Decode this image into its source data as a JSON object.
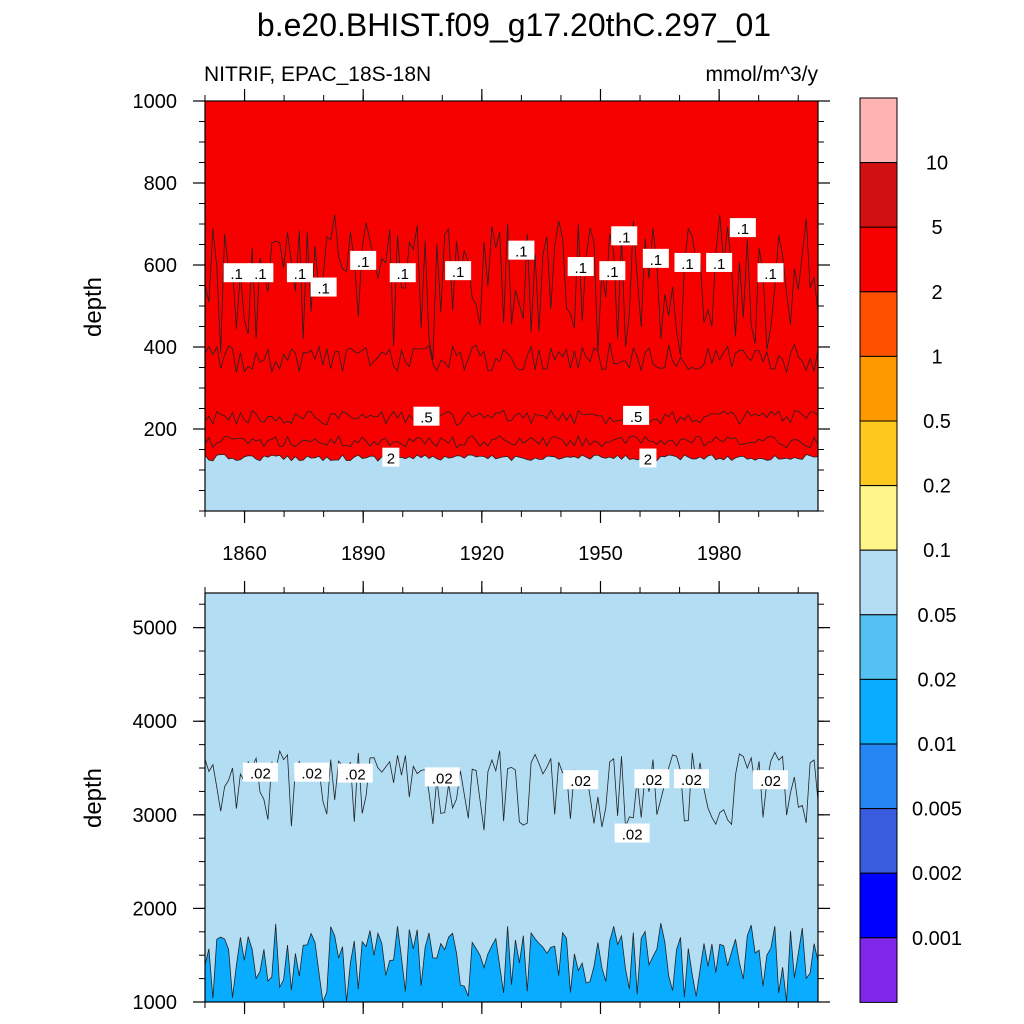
{
  "title": "b.e20.BHIST.f09_g17.20thC.297_01",
  "left_subtitle": "NITRIF, EPAC_18S-18N",
  "right_subtitle": "mmol/m^3/y",
  "colorbar": {
    "colors": [
      "#ffb4b4",
      "#d11111",
      "#f70000",
      "#ff5000",
      "#ff9900",
      "#ffc81e",
      "#fff68b",
      "#b2ddf3",
      "#54c1f2",
      "#09acfe",
      "#2585f2",
      "#385cdd",
      "#0000ff",
      "#7e27eb"
    ],
    "labels": [
      "10",
      "5",
      "2",
      "1",
      "0.5",
      "0.2",
      "0.1",
      "0.05",
      "0.02",
      "0.01",
      "0.005",
      "0.002",
      "0.001"
    ]
  },
  "chart_data": [
    {
      "type": "contour",
      "panel": "upper",
      "ylabel": "depth",
      "ylim": [
        1000,
        0
      ],
      "yticks": [
        "200",
        "400",
        "600",
        "800",
        "1000"
      ],
      "xlim": [
        1850,
        2005
      ],
      "xticks": [
        "1860",
        "1890",
        "1920",
        "1950",
        "1980"
      ],
      "levels": [
        0.1,
        0.2,
        0.5,
        1,
        2
      ],
      "band_fills_top_to_bottom": [
        "#f70000",
        "#ff5000",
        "#ff9900",
        "#ffc81e",
        "#fff68b",
        "#b2ddf3"
      ],
      "boundary_depths": [
        130,
        170,
        230,
        380,
        590
      ],
      "contour_labels": [
        {
          "text": "2",
          "x": 1897,
          "y": 130
        },
        {
          "text": "2",
          "x": 1962,
          "y": 128
        },
        {
          "text": ".5",
          "x": 1906,
          "y": 230
        },
        {
          "text": ".5",
          "x": 1959,
          "y": 232
        },
        {
          "text": ".1",
          "x": 1858,
          "y": 580
        },
        {
          "text": ".1",
          "x": 1864,
          "y": 580
        },
        {
          "text": ".1",
          "x": 1874,
          "y": 580
        },
        {
          "text": ".1",
          "x": 1880,
          "y": 545
        },
        {
          "text": ".1",
          "x": 1890,
          "y": 610
        },
        {
          "text": ".1",
          "x": 1900,
          "y": 580
        },
        {
          "text": ".1",
          "x": 1914,
          "y": 585
        },
        {
          "text": ".1",
          "x": 1930,
          "y": 635
        },
        {
          "text": ".1",
          "x": 1945,
          "y": 595
        },
        {
          "text": ".1",
          "x": 1953,
          "y": 585
        },
        {
          "text": ".1",
          "x": 1956,
          "y": 670
        },
        {
          "text": ".1",
          "x": 1964,
          "y": 615
        },
        {
          "text": ".1",
          "x": 1972,
          "y": 605
        },
        {
          "text": ".1",
          "x": 1980,
          "y": 605
        },
        {
          "text": ".1",
          "x": 1986,
          "y": 690
        },
        {
          "text": ".1",
          "x": 1993,
          "y": 580
        }
      ]
    },
    {
      "type": "contour",
      "panel": "lower",
      "ylabel": "depth",
      "ylim": [
        5370,
        1000
      ],
      "yticks": [
        "1000",
        "2000",
        "3000",
        "4000",
        "5000"
      ],
      "xlim": [
        1850,
        2005
      ],
      "levels": [
        0.02,
        0.05
      ],
      "band_fills_top_to_bottom": [
        "#b2ddf3",
        "#54c1f2",
        "#09acfe"
      ],
      "boundary_depths": [
        1500,
        3450
      ],
      "contour_labels": [
        {
          "text": ".02",
          "x": 1864,
          "y": 3450
        },
        {
          "text": ".02",
          "x": 1877,
          "y": 3450
        },
        {
          "text": ".02",
          "x": 1888,
          "y": 3440
        },
        {
          "text": ".02",
          "x": 1910,
          "y": 3400
        },
        {
          "text": ".02",
          "x": 1945,
          "y": 3370
        },
        {
          "text": ".02",
          "x": 1958,
          "y": 2800
        },
        {
          "text": ".02",
          "x": 1963,
          "y": 3380
        },
        {
          "text": ".02",
          "x": 1973,
          "y": 3380
        },
        {
          "text": ".02",
          "x": 1993,
          "y": 3370
        }
      ]
    }
  ]
}
